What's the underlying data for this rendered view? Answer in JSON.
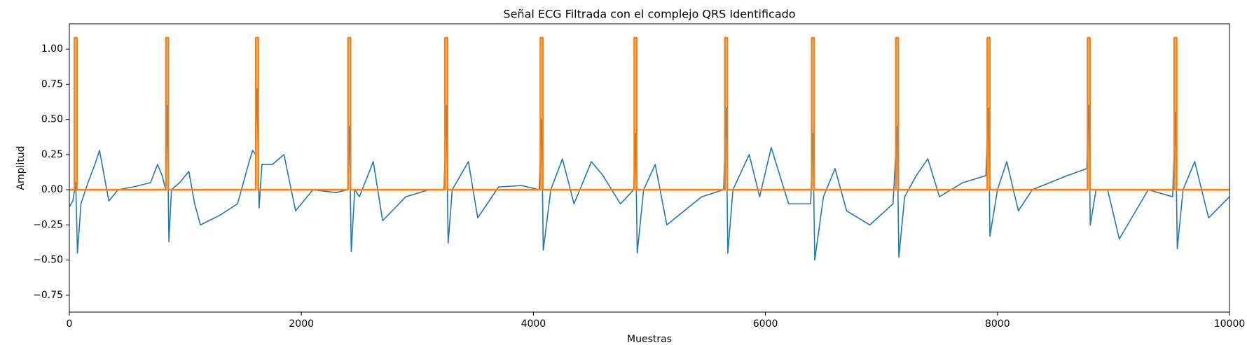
{
  "chart_data": {
    "type": "line",
    "title": "Señal ECG Filtrada con el complejo QRS Identificado",
    "x_label": "Muestras",
    "y_label": "Amplitud",
    "xlim": [
      0,
      10000
    ],
    "xticks": [
      0,
      2000,
      4000,
      6000,
      8000,
      10000
    ],
    "ylim": [
      -0.87,
      1.18
    ],
    "yticks": [
      {
        "value": -0.75,
        "label": "−0.75"
      },
      {
        "value": -0.5,
        "label": "−0.50"
      },
      {
        "value": -0.25,
        "label": "−0.25"
      },
      {
        "value": 0,
        "label": "0.00"
      },
      {
        "value": 0.25,
        "label": "0.25"
      },
      {
        "value": 0.5,
        "label": "0.50"
      },
      {
        "value": 0.75,
        "label": "0.75"
      },
      {
        "value": 1,
        "label": "1.00"
      }
    ],
    "grid": false,
    "series": [
      {
        "color": "#1f77b4",
        "x": [
          0,
          30,
          55,
          70,
          100,
          160,
          220,
          260,
          300,
          340,
          420,
          550,
          700,
          760,
          800,
          830,
          843,
          858,
          880,
          950,
          1030,
          1080,
          1130,
          1300,
          1450,
          1550,
          1580,
          1605,
          1618,
          1635,
          1660,
          1750,
          1850,
          1950,
          2100,
          2300,
          2400,
          2413,
          2430,
          2460,
          2500,
          2620,
          2700,
          2900,
          3100,
          3230,
          3249,
          3265,
          3300,
          3440,
          3520,
          3700,
          3900,
          4050,
          4071,
          4085,
          4150,
          4250,
          4350,
          4500,
          4600,
          4750,
          4865,
          4880,
          4895,
          4950,
          5050,
          5150,
          5450,
          5640,
          5661,
          5676,
          5720,
          5860,
          5950,
          6050,
          6200,
          6390,
          6409,
          6425,
          6500,
          6600,
          6700,
          6900,
          7100,
          7135,
          7150,
          7200,
          7300,
          7400,
          7500,
          7700,
          7900,
          7923,
          7935,
          8000,
          8080,
          8180,
          8300,
          8600,
          8770,
          8787,
          8800,
          8850,
          8950,
          9050,
          9300,
          9510,
          9534,
          9550,
          9600,
          9700,
          9820,
          10000
        ],
        "values": [
          -0.12,
          -0.08,
          0.05,
          -0.45,
          -0.1,
          0.05,
          0.18,
          0.28,
          0.1,
          -0.08,
          0,
          0.02,
          0.05,
          0.18,
          0.1,
          0,
          0.6,
          -0.37,
          0,
          0.05,
          0.13,
          -0.1,
          -0.25,
          -0.18,
          -0.1,
          0.2,
          0.28,
          0.25,
          0.72,
          -0.13,
          0.18,
          0.18,
          0.25,
          -0.15,
          0,
          -0.02,
          0,
          0.45,
          -0.44,
          0,
          -0.05,
          0.2,
          -0.22,
          -0.05,
          0,
          0,
          0.6,
          -0.38,
          0,
          0.2,
          -0.2,
          0.02,
          0.03,
          0,
          0.5,
          -0.43,
          0,
          0.22,
          -0.1,
          0.2,
          0.1,
          -0.1,
          0,
          0.4,
          -0.45,
          0,
          0.18,
          -0.25,
          -0.05,
          0,
          0.58,
          -0.45,
          0,
          0.25,
          -0.05,
          0.3,
          -0.1,
          -0.1,
          0.4,
          -0.5,
          -0.05,
          0.15,
          -0.15,
          -0.25,
          -0.1,
          0.45,
          -0.48,
          -0.05,
          0.1,
          0.22,
          -0.05,
          0.05,
          0.1,
          0.58,
          -0.33,
          0,
          0.2,
          -0.15,
          0,
          0.1,
          0.15,
          0.6,
          -0.25,
          0,
          0,
          -0.35,
          0,
          -0.05,
          0.55,
          -0.42,
          0,
          0.2,
          -0.2,
          -0.05
        ]
      },
      {
        "color": "#ff7f0e",
        "x": [
          0,
          45,
          45,
          65,
          65,
          833,
          833,
          853,
          853,
          1608,
          1608,
          1628,
          1628,
          2403,
          2403,
          2423,
          2423,
          3239,
          3239,
          3259,
          3259,
          4061,
          4061,
          4081,
          4081,
          4870,
          4870,
          4890,
          4890,
          5651,
          5651,
          5671,
          5671,
          6399,
          6399,
          6419,
          6419,
          7125,
          7125,
          7145,
          7145,
          7913,
          7913,
          7933,
          7933,
          8777,
          8777,
          8797,
          8797,
          9524,
          9524,
          9544,
          9544,
          10000
        ],
        "values": [
          0,
          0,
          1.08,
          1.08,
          0,
          0,
          1.08,
          1.08,
          0,
          0,
          1.08,
          1.08,
          0,
          0,
          1.08,
          1.08,
          0,
          0,
          1.08,
          1.08,
          0,
          0,
          1.08,
          1.08,
          0,
          0,
          1.08,
          1.08,
          0,
          0,
          1.08,
          1.08,
          0,
          0,
          1.08,
          1.08,
          0,
          0,
          1.08,
          1.08,
          0,
          0,
          1.08,
          1.08,
          0,
          0,
          1.08,
          1.08,
          0,
          0,
          1.08,
          1.08,
          0,
          0
        ]
      }
    ]
  }
}
